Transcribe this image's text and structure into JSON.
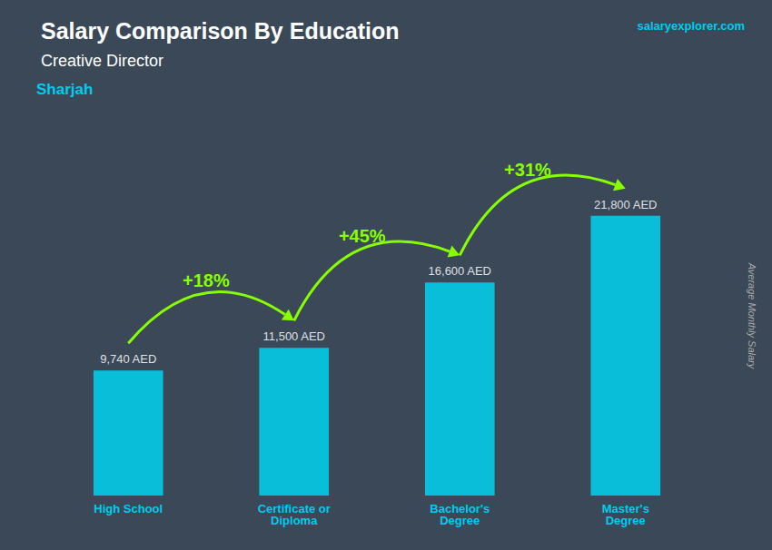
{
  "chart_data": {
    "type": "bar",
    "title": "Salary Comparison By Education",
    "subtitle": "Creative Director",
    "annotations": [
      "Sharjah",
      "salaryexplorer.com"
    ],
    "ylabel": "Average Monthly Salary",
    "categories": [
      "High School",
      "Certificate or\nDiploma",
      "Bachelor's\nDegree",
      "Master's\nDegree"
    ],
    "values": [
      9740,
      11500,
      16600,
      21800
    ],
    "value_labels": [
      "9,740 AED",
      "11,500 AED",
      "16,600 AED",
      "21,800 AED"
    ],
    "data_labels": true,
    "change_labels": [
      "+18%",
      "+45%",
      "+31%"
    ],
    "color": "#00d4f0",
    "ylim": [
      0,
      28000
    ],
    "tick_labels": "x",
    "grid": false
  }
}
